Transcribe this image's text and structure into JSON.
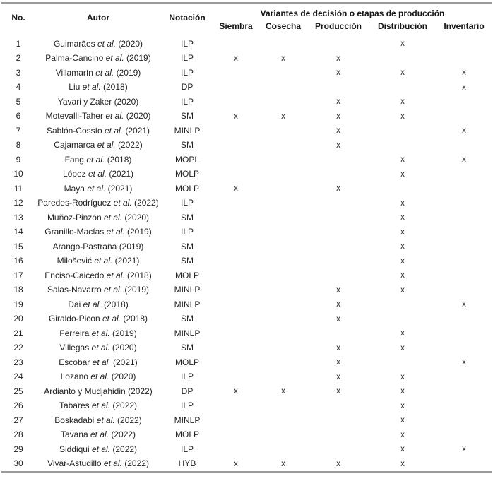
{
  "page": {
    "background": "#ffffff",
    "rule_color": "#9a9a9a",
    "text_color": "#1d1d1d"
  },
  "table": {
    "columns": {
      "no": "No.",
      "autor": "Autor",
      "notacion": "Notación"
    },
    "group_header": "Variantes de decisión o etapas de producción",
    "variant_headers": [
      "Siembra",
      "Cosecha",
      "Producción",
      "Distribución",
      "Inventario"
    ],
    "mark": "x",
    "rows": [
      {
        "no": "1",
        "name": "Guimarães",
        "etal": "et al.",
        "year": "(2020)",
        "notation": "ILP",
        "marks": [
          0,
          0,
          0,
          1,
          0
        ]
      },
      {
        "no": "2",
        "name": "Palma-Cancino",
        "etal": "et al.",
        "year": "(2019)",
        "notation": "ILP",
        "marks": [
          1,
          1,
          1,
          0,
          0
        ]
      },
      {
        "no": "3",
        "name": "Villamarín",
        "etal": "et al.",
        "year": "(2019)",
        "notation": "ILP",
        "marks": [
          0,
          0,
          1,
          1,
          1
        ]
      },
      {
        "no": "4",
        "name": "Liu",
        "etal": "et al.",
        "year": "(2018)",
        "notation": "DP",
        "marks": [
          0,
          0,
          0,
          0,
          1
        ]
      },
      {
        "no": "5",
        "name": "Yavari y Zaker",
        "etal": "",
        "year": "(2020)",
        "notation": "ILP",
        "marks": [
          0,
          0,
          1,
          1,
          0
        ]
      },
      {
        "no": "6",
        "name": "Motevalli-Taher",
        "etal": "et al.",
        "year": "(2020)",
        "notation": "SM",
        "marks": [
          1,
          1,
          1,
          1,
          0
        ]
      },
      {
        "no": "7",
        "name": "Sablón-Cossío",
        "etal": "et al.",
        "year": "(2021)",
        "notation": "MINLP",
        "marks": [
          0,
          0,
          1,
          0,
          1
        ]
      },
      {
        "no": "8",
        "name": "Cajamarca",
        "etal": "et al.",
        "year": "(2022)",
        "notation": "SM",
        "marks": [
          0,
          0,
          1,
          0,
          0
        ]
      },
      {
        "no": "9",
        "name": "Fang",
        "etal": "et al.",
        "year": "(2018)",
        "notation": "MOPL",
        "marks": [
          0,
          0,
          0,
          1,
          1
        ]
      },
      {
        "no": "10",
        "name": "López",
        "etal": "et al.",
        "year": "(2021)",
        "notation": "MOLP",
        "marks": [
          0,
          0,
          0,
          1,
          0
        ]
      },
      {
        "no": "11",
        "name": "Maya",
        "etal": "et al.",
        "year": "(2021)",
        "notation": "MOLP",
        "marks": [
          1,
          0,
          1,
          0,
          0
        ]
      },
      {
        "no": "12",
        "name": "Paredes-Rodríguez",
        "etal": "et al.",
        "year": "(2022)",
        "notation": "ILP",
        "marks": [
          0,
          0,
          0,
          1,
          0
        ]
      },
      {
        "no": "13",
        "name": "Muñoz-Pinzón",
        "etal": "et al.",
        "year": "(2020)",
        "notation": "SM",
        "marks": [
          0,
          0,
          0,
          1,
          0
        ]
      },
      {
        "no": "14",
        "name": "Granillo-Macías",
        "etal": "et al.",
        "year": "(2019)",
        "notation": "ILP",
        "marks": [
          0,
          0,
          0,
          1,
          0
        ]
      },
      {
        "no": "15",
        "name": "Arango-Pastrana",
        "etal": "",
        "year": "(2019)",
        "notation": "SM",
        "marks": [
          0,
          0,
          0,
          1,
          0
        ]
      },
      {
        "no": "16",
        "name": "Milošević",
        "etal": "et al.",
        "year": "(2021)",
        "notation": "SM",
        "marks": [
          0,
          0,
          0,
          1,
          0
        ]
      },
      {
        "no": "17",
        "name": "Enciso-Caicedo",
        "etal": "et al.",
        "year": "(2018)",
        "notation": "MOLP",
        "marks": [
          0,
          0,
          0,
          1,
          0
        ]
      },
      {
        "no": "18",
        "name": "Salas-Navarro",
        "etal": "et al.",
        "year": "(2019)",
        "notation": "MINLP",
        "marks": [
          0,
          0,
          1,
          1,
          0
        ]
      },
      {
        "no": "19",
        "name": "Dai",
        "etal": "et al.",
        "year": "(2018)",
        "notation": "MINLP",
        "marks": [
          0,
          0,
          1,
          0,
          1
        ]
      },
      {
        "no": "20",
        "name": "Giraldo-Picon",
        "etal": "et al.",
        "year": "(2018)",
        "notation": "SM",
        "marks": [
          0,
          0,
          1,
          0,
          0
        ]
      },
      {
        "no": "21",
        "name": "Ferreira",
        "etal": "et al.",
        "year": "(2019)",
        "notation": "MINLP",
        "marks": [
          0,
          0,
          0,
          1,
          0
        ]
      },
      {
        "no": "22",
        "name": "Villegas",
        "etal": "et al.",
        "year": "(2020)",
        "notation": "SM",
        "marks": [
          0,
          0,
          1,
          1,
          0
        ]
      },
      {
        "no": "23",
        "name": "Escobar",
        "etal": "et al.",
        "year": "(2021)",
        "notation": "MOLP",
        "marks": [
          0,
          0,
          1,
          0,
          1
        ]
      },
      {
        "no": "24",
        "name": "Lozano",
        "etal": "et al.",
        "year": "(2020)",
        "notation": "ILP",
        "marks": [
          0,
          0,
          1,
          1,
          0
        ]
      },
      {
        "no": "25",
        "name": "Ardianto y Mudjahidin",
        "etal": "",
        "year": "(2022)",
        "notation": "DP",
        "marks": [
          1,
          1,
          1,
          1,
          0
        ]
      },
      {
        "no": "26",
        "name": "Tabares",
        "etal": "et al.",
        "year": "(2022)",
        "notation": "ILP",
        "marks": [
          0,
          0,
          0,
          1,
          0
        ]
      },
      {
        "no": "27",
        "name": "Boskadabi",
        "etal": "et al.",
        "year": "(2022)",
        "notation": "MINLP",
        "marks": [
          0,
          0,
          0,
          1,
          0
        ]
      },
      {
        "no": "28",
        "name": "Tavana",
        "etal": "et al.",
        "year": "(2022)",
        "notation": "MOLP",
        "marks": [
          0,
          0,
          0,
          1,
          0
        ]
      },
      {
        "no": "29",
        "name": "Siddiqui",
        "etal": "et al.",
        "year": "(2022)",
        "notation": "ILP",
        "marks": [
          0,
          0,
          0,
          1,
          1
        ]
      },
      {
        "no": "30",
        "name": "Vivar-Astudillo",
        "etal": "et al.",
        "year": "(2022)",
        "notation": "HYB",
        "marks": [
          1,
          1,
          1,
          1,
          0
        ]
      }
    ]
  }
}
